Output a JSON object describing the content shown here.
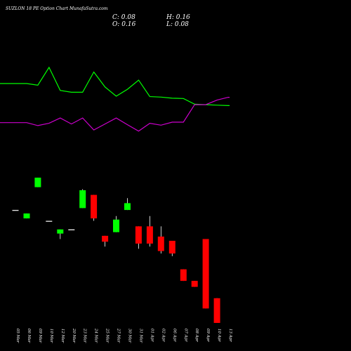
{
  "header": {
    "title": "SUZLON  18  PE Option  Chart  MunafaSutra.com",
    "close_label": "C: 0.08",
    "high_label": "H: 0.16",
    "open_label": "O: 0.16",
    "low_label": "L: 0.08"
  },
  "chart_data": {
    "type": "candlestick",
    "title": "SUZLON  18  PE Option  Chart  MunafaSutra.com",
    "categories": [
      "05 Mar",
      "06 Mar",
      "09 Mar",
      "10 Mar",
      "12 Mar",
      "20 Mar",
      "23 Mar",
      "24 Mar",
      "25 Mar",
      "27 Mar",
      "30 Mar",
      "31 Mar",
      "01 Apr",
      "02 Apr",
      "06 Apr",
      "07 Apr",
      "08 Apr",
      "09 Apr",
      "10 Apr",
      "13 Apr"
    ],
    "candles": [
      {
        "open": 1.9,
        "high": 1.9,
        "low": 1.9,
        "close": 1.9,
        "color": "#ffffff"
      },
      {
        "open": 1.5,
        "high": 1.72,
        "low": 1.5,
        "close": 1.72,
        "color": "#00ff00"
      },
      {
        "open": 3.6,
        "high": 4.7,
        "low": 3.6,
        "close": 4.7,
        "color": "#00ff00"
      },
      {
        "open": 1.4,
        "high": 1.4,
        "low": 1.4,
        "close": 1.4,
        "color": "#ffffff"
      },
      {
        "open": 0.98,
        "high": 1.1,
        "low": 0.84,
        "close": 1.1,
        "color": "#00ff00"
      },
      {
        "open": 1.1,
        "high": 1.1,
        "low": 1.1,
        "close": 1.1,
        "color": "#ffffff"
      },
      {
        "open": 2.0,
        "high": 3.4,
        "low": 2.0,
        "close": 3.3,
        "color": "#00ff00"
      },
      {
        "open": 2.9,
        "high": 2.9,
        "low": 1.4,
        "close": 1.5,
        "color": "#ff0000"
      },
      {
        "open": 0.92,
        "high": 0.92,
        "low": 0.68,
        "close": 0.78,
        "color": "#ff0000"
      },
      {
        "open": 1.02,
        "high": 1.6,
        "low": 1.02,
        "close": 1.45,
        "color": "#00ff00"
      },
      {
        "open": 1.9,
        "high": 2.65,
        "low": 1.9,
        "close": 2.3,
        "color": "#00ff00"
      },
      {
        "open": 1.2,
        "high": 1.2,
        "low": 0.64,
        "close": 0.74,
        "color": "#ff0000"
      },
      {
        "open": 1.2,
        "high": 1.6,
        "low": 0.68,
        "close": 0.74,
        "color": "#ff0000"
      },
      {
        "open": 0.9,
        "high": 1.2,
        "low": 0.56,
        "close": 0.6,
        "color": "#ff0000"
      },
      {
        "open": 0.8,
        "high": 0.8,
        "low": 0.52,
        "close": 0.56,
        "color": "#ff0000"
      },
      {
        "open": 0.36,
        "high": 0.36,
        "low": 0.26,
        "close": 0.26,
        "color": "#ff0000"
      },
      {
        "open": 0.26,
        "high": 0.26,
        "low": 0.22,
        "close": 0.22,
        "color": "#ff0000"
      },
      {
        "open": 0.84,
        "high": 0.84,
        "low": 0.12,
        "close": 0.12,
        "color": "#ff0000"
      },
      {
        "open": 0.16,
        "high": 0.16,
        "low": 0.08,
        "close": 0.08,
        "color": "#ff0000"
      }
    ],
    "candle_slots": [
      0,
      1,
      2,
      3,
      4,
      5,
      6,
      7,
      8,
      9,
      10,
      11,
      12,
      13,
      14,
      15,
      16,
      17,
      18
    ],
    "price_log_range": [
      0.08,
      4.8
    ],
    "indicator_lines": [
      {
        "color": "#00ff00",
        "values": [
          12.0,
          12.0,
          11.3,
          19.0,
          9.0,
          8.2,
          8.2,
          17.0,
          10.5,
          6.5,
          9.5,
          13.5,
          6.3,
          6.1,
          5.6,
          5.5,
          3.0,
          2.8,
          2.6,
          2.4
        ]
      },
      {
        "color": "#cc00cc",
        "values": [
          -5.0,
          -5.0,
          -6.3,
          -5.3,
          -3.0,
          -5.6,
          -3.0,
          -8.2,
          -5.6,
          -3.0,
          -5.9,
          -8.7,
          -5.3,
          -6.1,
          -4.8,
          -4.8,
          2.8,
          2.8,
          4.8,
          6.0
        ]
      }
    ],
    "indicator_range": [
      -28,
      30
    ],
    "grid": false,
    "legend": "none"
  }
}
